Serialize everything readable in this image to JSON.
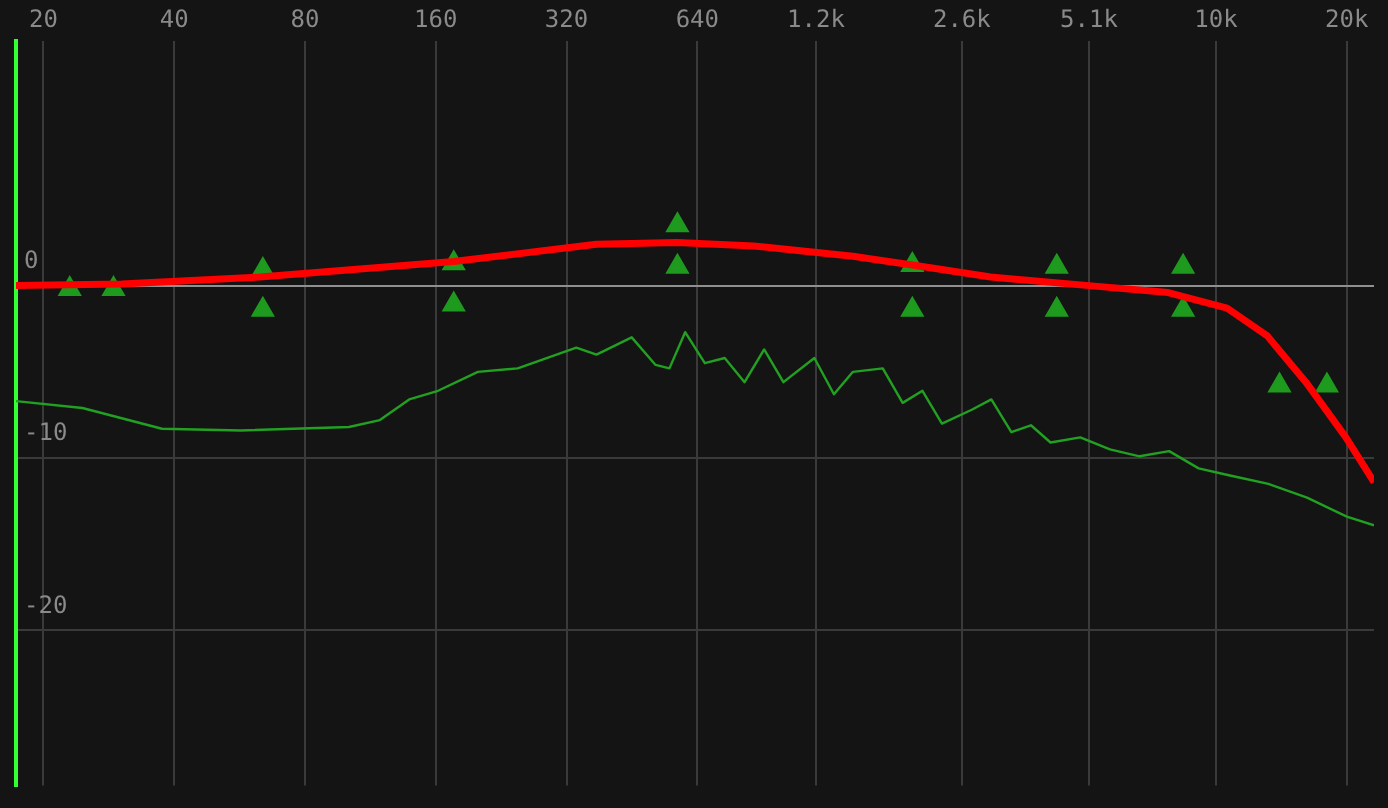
{
  "chart_data": {
    "type": "line",
    "log": "x",
    "grid": true,
    "legend": false,
    "xlim": [
      17.3,
      23100
    ],
    "ylim": [
      -29,
      14.2
    ],
    "xticks": [
      20,
      40,
      80,
      160,
      320,
      640,
      {
        "value": 1200,
        "label": "1.2k"
      },
      {
        "value": 2600,
        "label": "2.6k"
      },
      {
        "value": 5100,
        "label": "5.1k"
      },
      {
        "value": 10000,
        "label": "10k"
      },
      {
        "value": 20000,
        "label": "20k"
      }
    ],
    "yticks": [
      0,
      -10,
      -20
    ],
    "series": [
      {
        "color": "#ff0000",
        "x": [
          17.3,
          30.3,
          63,
          176,
          375,
          576,
          862,
          1460,
          2000,
          3030,
          5100,
          7760,
          10600,
          13100,
          16100,
          19900,
          23100
        ],
        "values": [
          0,
          0.1,
          0.5,
          1.4,
          2.4,
          2.5,
          2.3,
          1.7,
          1.2,
          0.5,
          0,
          -0.4,
          -1.3,
          -2.9,
          -5.6,
          -8.8,
          -11.4
        ]
      },
      {
        "color": "#22a022",
        "x": [
          17.3,
          24.6,
          37.5,
          57,
          101,
          119,
          139,
          162,
          200,
          247,
          288,
          337,
          375,
          452,
          513,
          552,
          600,
          666,
          740,
          822,
          912,
          1010,
          1190,
          1320,
          1460,
          1710,
          1900,
          2110,
          2340,
          2740,
          3040,
          3380,
          3750,
          4160,
          4870,
          5700,
          6670,
          7800,
          9120,
          10700,
          13200,
          16200,
          20000,
          23100
        ],
        "values": [
          -6.7,
          -7.1,
          -8.3,
          -8.4,
          -8.2,
          -7.8,
          -6.6,
          -6.1,
          -5.0,
          -4.8,
          -4.2,
          -3.6,
          -4.0,
          -3.0,
          -4.6,
          -4.8,
          -2.7,
          -4.5,
          -4.2,
          -5.6,
          -3.7,
          -5.6,
          -4.2,
          -6.3,
          -5.0,
          -4.8,
          -6.8,
          -6.1,
          -8.0,
          -7.2,
          -6.6,
          -8.5,
          -8.1,
          -9.1,
          -8.8,
          -9.5,
          -9.9,
          -9.6,
          -10.6,
          -11.0,
          -11.5,
          -12.3,
          -13.4,
          -13.9
        ]
      },
      {
        "type": "scatter",
        "color": "#1e9a1e",
        "marker": "triangle",
        "x": [
          64,
          176,
          576,
          2000,
          4300,
          8400,
          64,
          176,
          576,
          2000,
          4300,
          8400,
          23,
          29,
          14000,
          18000
        ],
        "values": [
          0.9,
          1.3,
          3.5,
          1.2,
          1.1,
          1.1,
          -1.4,
          -1.1,
          1.1,
          -1.4,
          -1.4,
          -1.4,
          -0.2,
          -0.2,
          -5.8,
          -5.8
        ]
      }
    ]
  }
}
